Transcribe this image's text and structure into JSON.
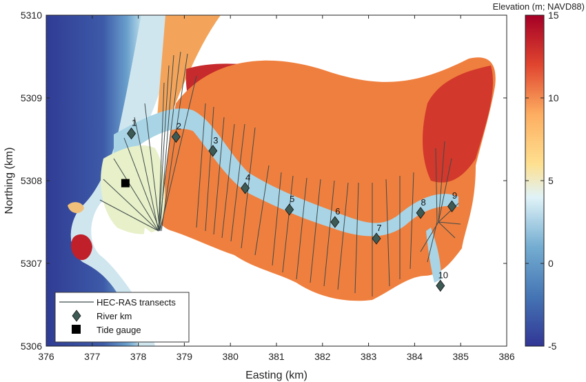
{
  "figure": {
    "xlabel": "Easting (km)",
    "ylabel": "Northing (km)",
    "x_ticks": [
      "376",
      "377",
      "378",
      "379",
      "380",
      "381",
      "382",
      "383",
      "384",
      "385",
      "386"
    ],
    "y_ticks": [
      "5310",
      "5309",
      "5308",
      "5307",
      "5306"
    ],
    "xlim": [
      376,
      386
    ],
    "ylim": [
      5306,
      5310
    ]
  },
  "colorbar": {
    "title": "Elevation (m; NAVD88)",
    "ticks": [
      "15",
      "10",
      "5",
      "0",
      "-5"
    ],
    "range": [
      -5,
      15
    ]
  },
  "legend": {
    "transects": "HEC-RAS transects",
    "river_km": "River km",
    "tide_gauge": "Tide gauge"
  },
  "river_km_markers": [
    {
      "label": "1",
      "easting": 377.85,
      "northing": 5308.57
    },
    {
      "label": "2",
      "easting": 378.82,
      "northing": 5308.53
    },
    {
      "label": "3",
      "easting": 379.62,
      "northing": 5308.36
    },
    {
      "label": "4",
      "easting": 380.32,
      "northing": 5307.91
    },
    {
      "label": "5",
      "easting": 381.28,
      "northing": 5307.65
    },
    {
      "label": "6",
      "easting": 382.27,
      "northing": 5307.5
    },
    {
      "label": "7",
      "easting": 383.17,
      "northing": 5307.3
    },
    {
      "label": "8",
      "easting": 384.13,
      "northing": 5307.61
    },
    {
      "label": "9",
      "easting": 384.81,
      "northing": 5307.69
    },
    {
      "label": "10",
      "easting": 384.56,
      "northing": 5306.73
    }
  ],
  "tide_gauge": {
    "easting": 377.72,
    "northing": 5307.97
  },
  "colors": {
    "ocean": "#3a50a0",
    "channel": "#a9d3e8",
    "floodplain": "#f0b060",
    "highland": "#c0202a",
    "transect": "#3f4a4a",
    "marker": "#3e5a55"
  }
}
